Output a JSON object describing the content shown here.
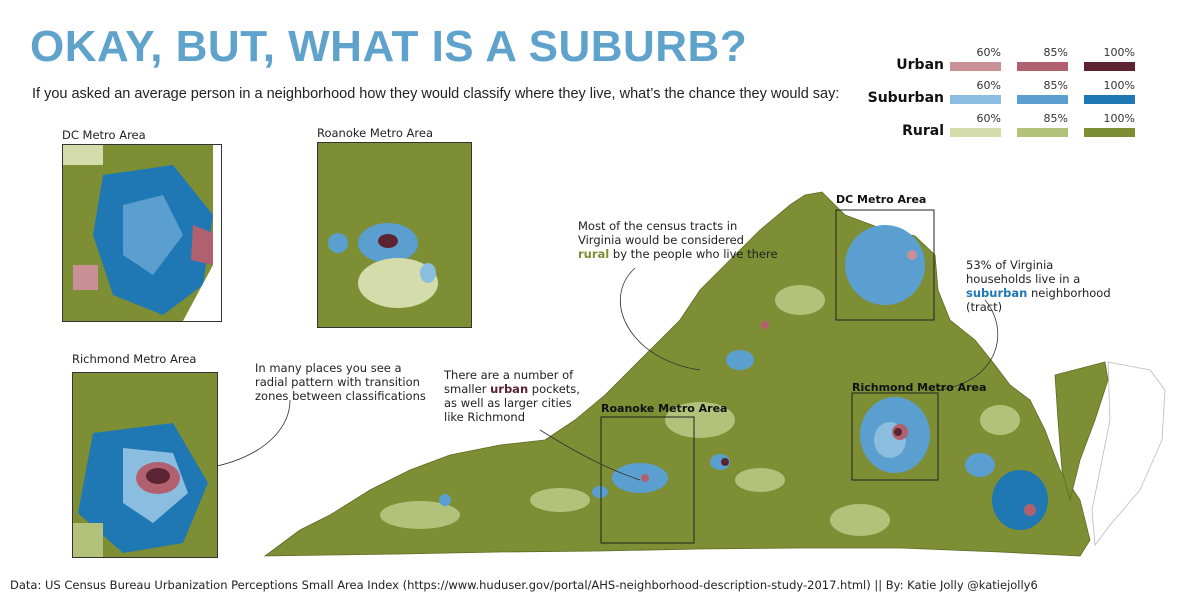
{
  "title": "Okay, but, what is a suburb?",
  "subtitle": "If you asked an average person in a neighborhood how they would classify where they live, what’s the chance they would say:",
  "legend": {
    "rows": [
      {
        "name": "Urban",
        "levels": [
          "60%",
          "85%",
          "100%"
        ],
        "colors": [
          "#c99098",
          "#b0606f",
          "#5c2433"
        ]
      },
      {
        "name": "Suburban",
        "levels": [
          "60%",
          "85%",
          "100%"
        ],
        "colors": [
          "#8bbde0",
          "#5a9fd0",
          "#1f78b4"
        ]
      },
      {
        "name": "Rural",
        "levels": [
          "60%",
          "85%",
          "100%"
        ],
        "colors": [
          "#d3dcaa",
          "#b3c27a",
          "#7d8e34"
        ]
      }
    ]
  },
  "insets": {
    "dc": "DC Metro Area",
    "roanoke": "Roanoke Metro Area",
    "richmond": "Richmond Metro Area"
  },
  "map_labels": {
    "dc": "DC Metro Area",
    "roanoke": "Roanoke Metro Area",
    "richmond": "Richmond Metro Area"
  },
  "annotations": {
    "rural": {
      "pre": "Most of the census tracts in Virginia would be considered ",
      "highlight": "rural",
      "post": " by the people who live there"
    },
    "suburban": {
      "pre": "53% of Virginia households live in a ",
      "highlight": "suburban",
      "post": " neighborhood (tract)"
    },
    "urban": {
      "pre": "There are a number of smaller ",
      "highlight": "urban",
      "post": " pockets, as well as larger cities like Richmond"
    },
    "radial": "In many places you see a radial pattern with transition zones between classifications"
  },
  "footer": "Data: US Census Bureau Urbanization Perceptions Small Area Index (https://www.huduser.gov/portal/AHS-neighborhood-description-study-2017.html) || By: Katie Jolly @katiejolly6"
}
